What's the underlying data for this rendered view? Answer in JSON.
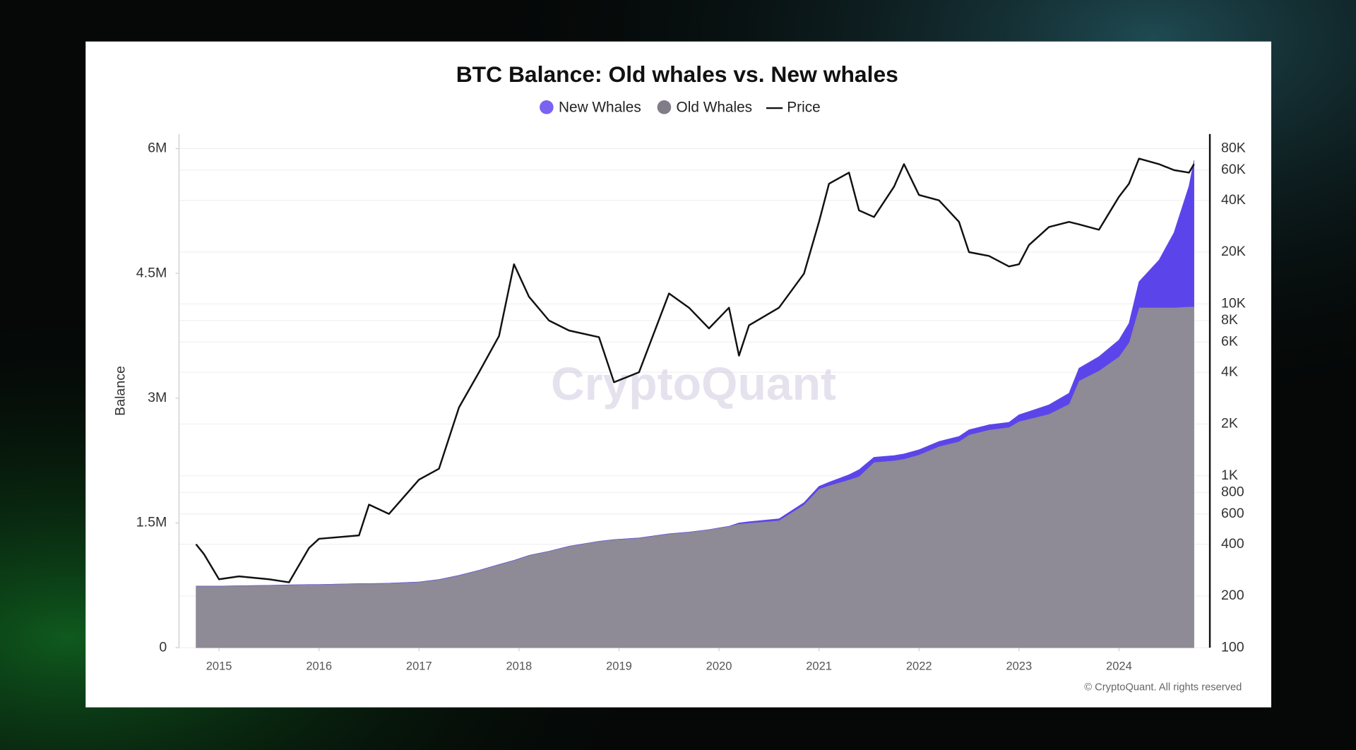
{
  "chart_data": {
    "type": "stacked-area-line",
    "title": "BTC Balance: Old whales vs. New whales",
    "y_label": "Balance",
    "watermark": "CryptoQuant",
    "footer": "© CryptoQuant. All rights reserved",
    "x": [
      2014.77,
      2014.85,
      2015.0,
      2015.2,
      2015.5,
      2015.7,
      2015.9,
      2016.0,
      2016.4,
      2016.5,
      2016.7,
      2017.0,
      2017.2,
      2017.4,
      2017.6,
      2017.8,
      2017.95,
      2018.1,
      2018.3,
      2018.5,
      2018.8,
      2018.95,
      2019.2,
      2019.5,
      2019.7,
      2019.9,
      2020.1,
      2020.2,
      2020.3,
      2020.6,
      2020.85,
      2021.0,
      2021.1,
      2021.3,
      2021.4,
      2021.55,
      2021.75,
      2021.85,
      2022.0,
      2022.2,
      2022.4,
      2022.5,
      2022.7,
      2022.9,
      2023.0,
      2023.1,
      2023.3,
      2023.5,
      2023.6,
      2023.8,
      2024.0,
      2024.1,
      2024.2,
      2024.4,
      2024.55,
      2024.7,
      2024.75
    ],
    "series": [
      {
        "name": "New Whales",
        "color": "#5b45ea",
        "marker": "circle",
        "legend_color": "#7a63f0",
        "values": [
          0,
          0,
          0,
          0,
          0,
          0,
          0,
          0,
          0,
          0,
          0,
          0,
          0,
          0,
          0,
          0,
          0,
          0,
          0,
          0,
          0,
          0,
          0,
          0,
          0,
          0,
          0,
          10000,
          15000,
          20000,
          25000,
          30000,
          40000,
          60000,
          80000,
          60000,
          60000,
          60000,
          60000,
          60000,
          60000,
          60000,
          60000,
          60000,
          80000,
          90000,
          110000,
          130000,
          150000,
          170000,
          200000,
          230000,
          310000,
          570000,
          900000,
          1450000,
          1760000
        ]
      },
      {
        "name": "Old Whales",
        "color": "#8e8a96",
        "marker": "circle",
        "legend_color": "#807c88",
        "values": [
          740000,
          740000,
          740000,
          745000,
          750000,
          755000,
          760000,
          760000,
          770000,
          770000,
          775000,
          790000,
          820000,
          870000,
          930000,
          1000000,
          1050000,
          1110000,
          1160000,
          1220000,
          1280000,
          1300000,
          1320000,
          1370000,
          1390000,
          1420000,
          1460000,
          1490000,
          1500000,
          1530000,
          1720000,
          1910000,
          1950000,
          2020000,
          2060000,
          2230000,
          2250000,
          2270000,
          2320000,
          2420000,
          2480000,
          2560000,
          2620000,
          2650000,
          2720000,
          2750000,
          2810000,
          2930000,
          3210000,
          3330000,
          3500000,
          3670000,
          4090000,
          4090000,
          4090000,
          4100000,
          4100000
        ]
      },
      {
        "name": "Price",
        "color": "#111111",
        "marker": "line",
        "axis": "y2",
        "values": [
          400,
          350,
          250,
          260,
          250,
          240,
          380,
          430,
          450,
          680,
          600,
          950,
          1100,
          2500,
          4000,
          6500,
          17000,
          11000,
          8000,
          7000,
          6400,
          3500,
          4000,
          11500,
          9500,
          7200,
          9500,
          5000,
          7500,
          9500,
          15000,
          30000,
          50000,
          58000,
          35000,
          32000,
          48000,
          65000,
          43000,
          40000,
          30000,
          20000,
          19000,
          16500,
          17000,
          22000,
          28000,
          30000,
          29000,
          27000,
          42000,
          50000,
          70000,
          65000,
          60000,
          58000,
          65000
        ]
      }
    ],
    "xlim": [
      2014.6,
      2024.9
    ],
    "xticks": [
      2015,
      2016,
      2017,
      2018,
      2019,
      2020,
      2021,
      2022,
      2023,
      2024
    ],
    "ylim": [
      0,
      6200000
    ],
    "yticks": [
      0,
      {
        "value": 1500000,
        "label": "1.5M"
      },
      {
        "value": 3000000,
        "label": "3M"
      },
      {
        "value": 4500000,
        "label": "4.5M"
      },
      {
        "value": 6000000,
        "label": "6M"
      }
    ],
    "y2lim": [
      100,
      100000
    ],
    "y2_log": true,
    "y2ticks": [
      100,
      200,
      400,
      600,
      800,
      {
        "value": 1000,
        "label": "1K"
      },
      {
        "value": 2000,
        "label": "2K"
      },
      {
        "value": 4000,
        "label": "4K"
      },
      {
        "value": 6000,
        "label": "6K"
      },
      {
        "value": 8000,
        "label": "8K"
      },
      {
        "value": 10000,
        "label": "10K"
      },
      {
        "value": 20000,
        "label": "20K"
      },
      {
        "value": 40000,
        "label": "40K"
      },
      {
        "value": 60000,
        "label": "60K"
      },
      {
        "value": 80000,
        "label": "80K"
      }
    ],
    "grid": true,
    "legend": "top"
  }
}
